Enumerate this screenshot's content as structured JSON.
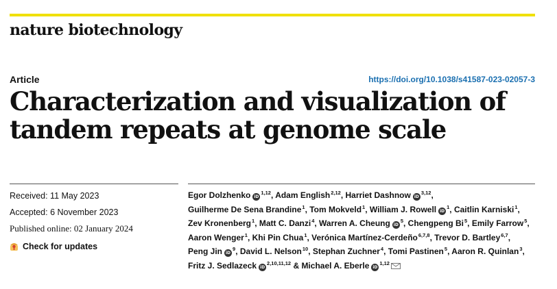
{
  "journal": "nature biotechnology",
  "article_type": "Article",
  "doi": "https://doi.org/10.1038/s41587-023-02057-3",
  "title_lines": [
    "Characterization and visualization of",
    "tandem repeats at genome scale"
  ],
  "dates": {
    "received": "Received: 11 May 2023",
    "accepted": "Accepted: 6 November 2023",
    "published": "Published online: 02 January 2024"
  },
  "check_updates": "Check for updates",
  "authors": [
    {
      "name": "Egor Dolzhenko",
      "orcid": true,
      "sup": "1,12"
    },
    {
      "name": "Adam English",
      "orcid": false,
      "sup": "2,12"
    },
    {
      "name": "Harriet Dashnow",
      "orcid": true,
      "sup": "3,12"
    },
    {
      "name": "Guilherme De Sena Brandine",
      "orcid": false,
      "sup": "1"
    },
    {
      "name": "Tom Mokveld",
      "orcid": false,
      "sup": "1"
    },
    {
      "name": "William J. Rowell",
      "orcid": true,
      "sup": "1"
    },
    {
      "name": "Caitlin Karniski",
      "orcid": false,
      "sup": "1"
    },
    {
      "name": "Zev Kronenberg",
      "orcid": false,
      "sup": "1"
    },
    {
      "name": "Matt C. Danzi",
      "orcid": false,
      "sup": "4"
    },
    {
      "name": "Warren A. Cheung",
      "orcid": true,
      "sup": "5"
    },
    {
      "name": "Chengpeng Bi",
      "orcid": false,
      "sup": "5"
    },
    {
      "name": "Emily Farrow",
      "orcid": false,
      "sup": "5"
    },
    {
      "name": "Aaron Wenger",
      "orcid": false,
      "sup": "1"
    },
    {
      "name": "Khi Pin Chua",
      "orcid": false,
      "sup": "1"
    },
    {
      "name": "Verónica Martínez-Cerdeño",
      "orcid": false,
      "sup": "6,7,8"
    },
    {
      "name": "Trevor D. Bartley",
      "orcid": false,
      "sup": "6,7"
    },
    {
      "name": "Peng Jin",
      "orcid": true,
      "sup": "9"
    },
    {
      "name": "David L. Nelson",
      "orcid": false,
      "sup": "10"
    },
    {
      "name": "Stephan Zuchner",
      "orcid": false,
      "sup": "4"
    },
    {
      "name": "Tomi Pastinen",
      "orcid": false,
      "sup": "5"
    },
    {
      "name": "Aaron R. Quinlan",
      "orcid": false,
      "sup": "3"
    },
    {
      "name": "Fritz J. Sedlazeck",
      "orcid": true,
      "sup": "2,10,11,12"
    },
    {
      "name": "Michael A. Eberle",
      "orcid": true,
      "sup": "1,12"
    }
  ],
  "last_author_prefix": "& ",
  "colors": {
    "accent_bar": "#f0e000",
    "link": "#1a6fb0"
  }
}
